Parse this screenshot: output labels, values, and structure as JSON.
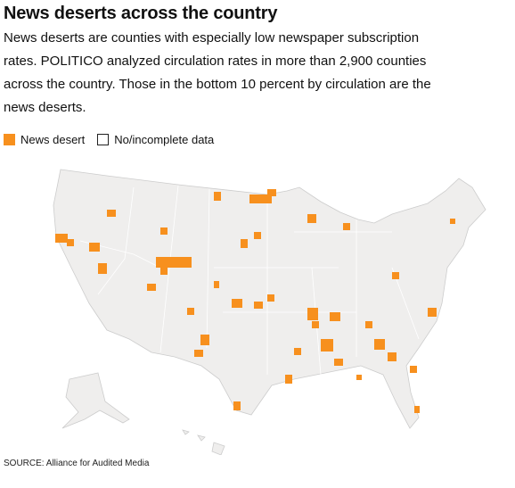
{
  "header": {
    "title": "News deserts across the country",
    "subtitle": "News deserts are counties with especially low newspaper subscription rates. POLITICO analyzed circulation rates in more than 2,900 counties across the country. Those in the bottom 10 percent by circulation are the news deserts."
  },
  "legend": [
    {
      "label": "News desert",
      "color": "#f7901e"
    },
    {
      "label": "No/incomplete data",
      "color": "#ffffff"
    }
  ],
  "source": "SOURCE: Alliance for Audited Media"
}
